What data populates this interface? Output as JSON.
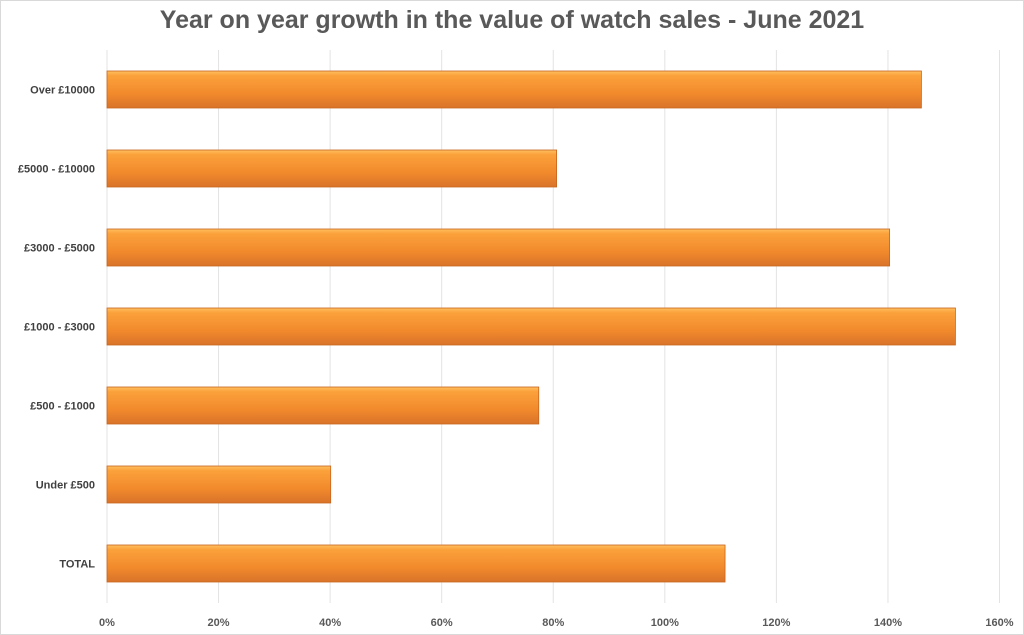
{
  "chart_data": {
    "type": "bar",
    "orientation": "horizontal",
    "title": "Year on year growth in the value of watch sales - June 2021",
    "categories": [
      "Over £10000",
      "£5000 - £10000",
      "£3000 - £5000",
      "£1000 - £3000",
      "£500 - £1000",
      "Under £500",
      "TOTAL"
    ],
    "values": [
      146,
      80.6,
      140.3,
      152.1,
      77.4,
      40.1,
      110.8
    ],
    "value_unit": "%",
    "xlim": [
      0,
      160
    ],
    "xticks": [
      "0%",
      "20%",
      "40%",
      "60%",
      "80%",
      "100%",
      "120%",
      "140%",
      "160%"
    ],
    "xlabel": "",
    "ylabel": "",
    "grid": "vertical",
    "legend": "none",
    "bar_color": "#F79533",
    "bar_edge_color": "#C8641E"
  }
}
